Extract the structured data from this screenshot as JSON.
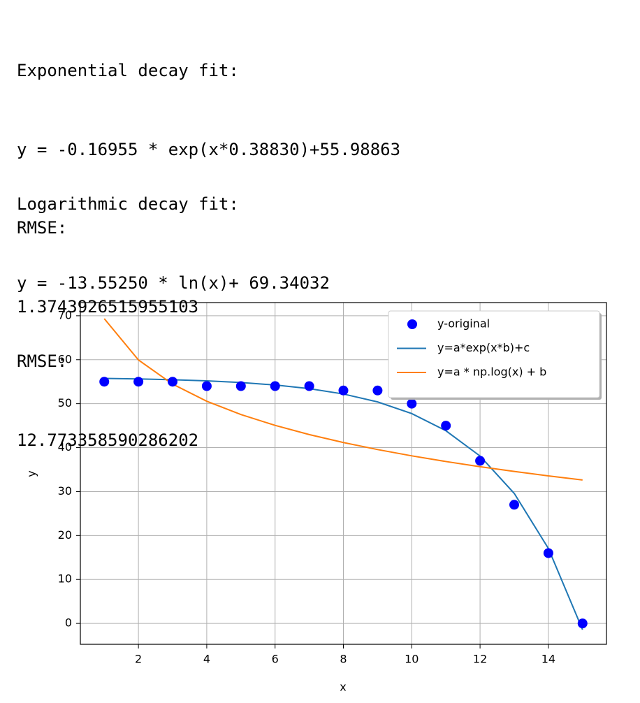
{
  "output": {
    "blocks": [
      [
        "Exponential decay fit:",
        "y = -0.16955 * exp(x*0.38830)+55.98863",
        "RMSE:",
        "1.3743926515955103"
      ],
      [
        "Logarithmic decay fit:",
        "y = -13.55250 * ln(x)+ 69.34032",
        "RMSE:",
        "12.773358590286202"
      ]
    ]
  },
  "chart_data": {
    "type": "line",
    "xlabel": "x",
    "ylabel": "y",
    "x": [
      1,
      2,
      3,
      4,
      5,
      6,
      7,
      8,
      9,
      10,
      11,
      12,
      13,
      14,
      15
    ],
    "series": [
      {
        "name": "y-original",
        "kind": "scatter",
        "color": "#0000ff",
        "values": [
          55,
          55,
          55,
          54,
          54,
          54,
          54,
          53,
          53,
          50,
          45,
          37,
          27,
          16,
          0
        ]
      },
      {
        "name": "y=a*exp(x*b)+c",
        "kind": "line",
        "color": "#1f77b4",
        "values": [
          55.74,
          55.62,
          55.45,
          55.19,
          54.81,
          54.25,
          53.42,
          52.2,
          50.4,
          47.75,
          43.84,
          38.08,
          29.59,
          17.06,
          -1.42
        ]
      },
      {
        "name": "y=a * np.log(x) + b",
        "kind": "line",
        "color": "#ff7f0e",
        "values": [
          69.34,
          59.95,
          54.45,
          50.55,
          47.53,
          45.06,
          42.97,
          41.16,
          39.56,
          38.13,
          36.84,
          35.66,
          34.58,
          33.57,
          32.64
        ]
      }
    ],
    "xlim": [
      0.3,
      15.7
    ],
    "ylim": [
      -4.75,
      73
    ],
    "xticks": [
      2,
      4,
      6,
      8,
      10,
      12,
      14
    ],
    "yticks": [
      0,
      10,
      20,
      30,
      40,
      50,
      60,
      70
    ],
    "grid": true,
    "legend": "upper right"
  }
}
